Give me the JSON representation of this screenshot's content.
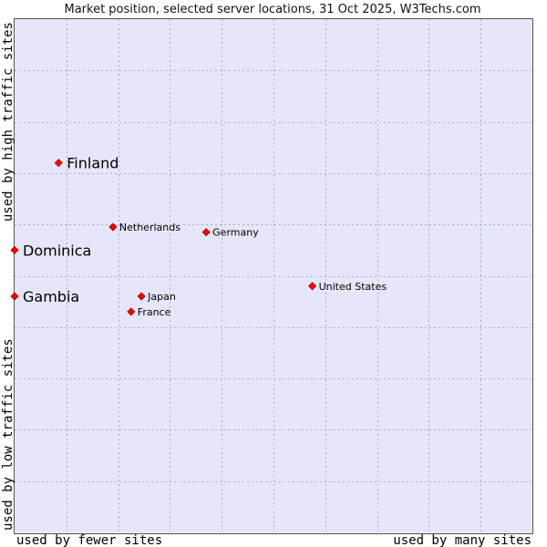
{
  "chart_data": {
    "type": "scatter",
    "title": "Market position, selected server locations, 31 Oct 2025, W3Techs.com",
    "xlabel_left": "used by fewer sites",
    "xlabel_right": "used by many sites",
    "ylabel_top": "used by high traffic sites",
    "ylabel_bottom": "used by low traffic sites",
    "xlim": [
      0,
      100
    ],
    "ylim": [
      0,
      100
    ],
    "grid": true,
    "point_color": "#ff0000",
    "background_color": "#e6e6fa",
    "points": [
      {
        "label": "Finland",
        "x": 8.5,
        "y": 72,
        "highlight": true
      },
      {
        "label": "Dominica",
        "x": 0,
        "y": 55,
        "highlight": true
      },
      {
        "label": "Gambia",
        "x": 0,
        "y": 46,
        "highlight": true
      },
      {
        "label": "Netherlands",
        "x": 19,
        "y": 59.5,
        "highlight": false
      },
      {
        "label": "Germany",
        "x": 37,
        "y": 58.5,
        "highlight": false
      },
      {
        "label": "United States",
        "x": 57.5,
        "y": 48,
        "highlight": false
      },
      {
        "label": "Japan",
        "x": 24.5,
        "y": 46,
        "highlight": false
      },
      {
        "label": "France",
        "x": 22.5,
        "y": 43,
        "highlight": false
      }
    ]
  }
}
